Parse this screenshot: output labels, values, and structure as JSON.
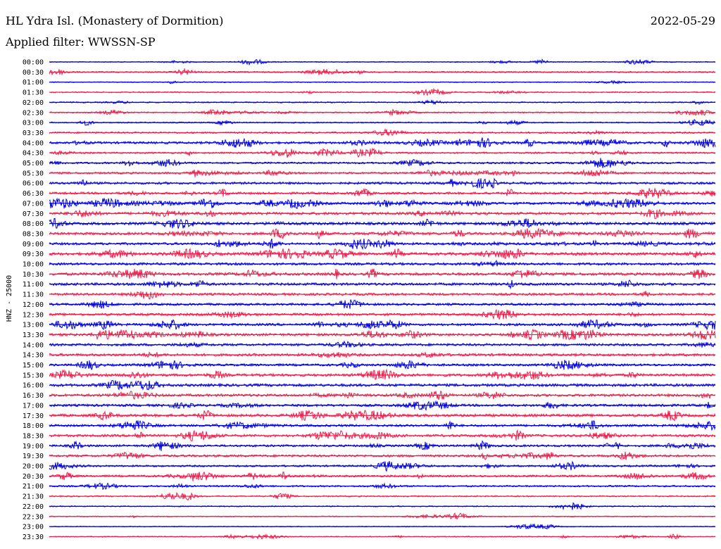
{
  "header": {
    "station": "HL Ydra Isl. (Monastery of Dormition)",
    "date": "2022-05-29",
    "filter": "Applied filter: WWSSN-SP"
  },
  "chart_data": {
    "type": "line",
    "subtype": "helicorder",
    "ylabel": "HNZ - 25000",
    "row_labels": [
      "00:00",
      "00:30",
      "01:00",
      "01:30",
      "02:00",
      "02:30",
      "03:00",
      "03:30",
      "04:00",
      "04:30",
      "05:00",
      "05:30",
      "06:00",
      "06:30",
      "07:00",
      "07:30",
      "08:00",
      "08:30",
      "09:00",
      "09:30",
      "10:00",
      "10:30",
      "11:00",
      "11:30",
      "12:00",
      "12:30",
      "13:00",
      "13:30",
      "14:00",
      "14:30",
      "15:00",
      "15:30",
      "16:00",
      "16:30",
      "17:00",
      "17:30",
      "18:00",
      "18:30",
      "19:00",
      "19:30",
      "20:00",
      "20:30",
      "21:00",
      "21:30",
      "22:00",
      "22:30",
      "23:00",
      "23:30"
    ],
    "series_colors": [
      "#0000e0",
      "#ee1d4a"
    ],
    "noise_level": [
      0.1,
      0.25,
      0.12,
      0.2,
      0.18,
      0.22,
      0.2,
      0.35,
      0.55,
      0.35,
      0.4,
      0.45,
      0.55,
      0.55,
      0.6,
      0.65,
      0.7,
      0.65,
      0.6,
      0.7,
      0.6,
      0.7,
      0.65,
      0.6,
      0.55,
      0.6,
      0.6,
      0.65,
      0.6,
      0.65,
      0.55,
      0.65,
      0.7,
      0.65,
      0.6,
      0.7,
      0.55,
      0.6,
      0.5,
      0.55,
      0.4,
      0.45,
      0.35,
      0.25,
      0.15,
      0.12,
      0.08,
      0.12
    ]
  }
}
